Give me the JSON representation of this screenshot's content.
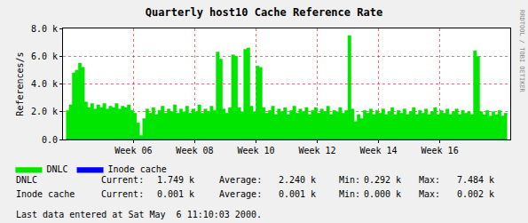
{
  "chart_data": {
    "type": "area",
    "title": "Quarterly host10 Cache Reference Rate",
    "y_label": "References/s",
    "x": [
      3.8,
      3.9,
      4.0,
      4.1,
      4.2,
      4.3,
      4.4,
      4.5,
      4.6,
      4.7,
      4.8,
      4.9,
      5.0,
      5.1,
      5.2,
      5.3,
      5.4,
      5.5,
      5.6,
      5.7,
      5.8,
      5.9,
      6.0,
      6.1,
      6.2,
      6.3,
      6.4,
      6.5,
      6.6,
      6.7,
      6.8,
      6.9,
      7.0,
      7.1,
      7.2,
      7.3,
      7.4,
      7.5,
      7.6,
      7.7,
      7.8,
      7.9,
      8.0,
      8.1,
      8.2,
      8.3,
      8.4,
      8.5,
      8.6,
      8.7,
      8.8,
      8.9,
      9.0,
      9.1,
      9.2,
      9.3,
      9.4,
      9.5,
      9.6,
      9.7,
      9.8,
      9.9,
      10.0,
      10.1,
      10.2,
      10.3,
      10.4,
      10.5,
      10.6,
      10.7,
      10.8,
      10.9,
      11.0,
      11.1,
      11.2,
      11.3,
      11.4,
      11.5,
      11.6,
      11.7,
      11.8,
      11.9,
      12.0,
      12.1,
      12.2,
      12.3,
      12.4,
      12.5,
      12.6,
      12.7,
      12.8,
      12.9,
      13.0,
      13.1,
      13.2,
      13.3,
      13.4,
      13.5,
      13.6,
      13.7,
      13.8,
      13.9,
      14.0,
      14.1,
      14.2,
      14.3,
      14.4,
      14.5,
      14.6,
      14.7,
      14.8,
      14.9,
      15.0,
      15.1,
      15.2,
      15.3,
      15.4,
      15.5,
      15.6,
      15.7,
      15.8,
      15.9,
      16.0,
      16.1,
      16.2,
      16.3,
      16.4,
      16.5,
      16.6,
      16.7,
      16.8,
      16.9,
      17.0,
      17.1,
      17.2,
      17.3,
      17.4,
      17.5,
      17.6,
      17.7,
      17.8,
      17.9,
      18.0,
      18.1,
      18.2
    ],
    "series": [
      {
        "name": "DNLC",
        "color": "#00e600",
        "values": [
          2100,
          2500,
          4800,
          5000,
          5500,
          5200,
          2700,
          2300,
          2600,
          2200,
          2500,
          2300,
          2600,
          2200,
          2400,
          2300,
          2600,
          2200,
          2400,
          2300,
          2500,
          2100,
          1900,
          1200,
          292,
          1500,
          2200,
          1900,
          2300,
          1800,
          2100,
          2400,
          1900,
          2200,
          2000,
          2500,
          1900,
          2200,
          2000,
          2400,
          1900,
          2200,
          2000,
          2500,
          1900,
          2200,
          2000,
          2400,
          2100,
          6300,
          5800,
          2200,
          1900,
          2300,
          6100,
          6000,
          2300,
          2000,
          6500,
          6600,
          2400,
          2000,
          5300,
          5200,
          2300,
          1900,
          2100,
          2400,
          1800,
          2200,
          2000,
          2300,
          1800,
          2100,
          2400,
          1900,
          2200,
          2000,
          2300,
          1800,
          2100,
          2300,
          1900,
          2200,
          2000,
          2400,
          1800,
          2100,
          2000,
          2300,
          1900,
          2100,
          7484,
          2200,
          1300,
          1800,
          1500,
          2100,
          1900,
          2200,
          1800,
          2100,
          1900,
          2200,
          1800,
          2000,
          2300,
          1800,
          2100,
          1900,
          2200,
          1800,
          2000,
          2300,
          1800,
          2100,
          1900,
          2200,
          1800,
          2000,
          2300,
          1800,
          2100,
          1900,
          2200,
          1800,
          2000,
          2200,
          1800,
          2100,
          1900,
          2000,
          1800,
          6400,
          6000,
          2000,
          1800,
          2100,
          1700,
          2000,
          1800,
          2100,
          1700,
          1900,
          1749
        ]
      },
      {
        "name": "Inode cache",
        "color": "#0000ff",
        "values": [
          1,
          1,
          1,
          1,
          1,
          1,
          1,
          1,
          1,
          1,
          1,
          1,
          1,
          1,
          1,
          1,
          1,
          1,
          1,
          1,
          1,
          1,
          1,
          1,
          0,
          1,
          1,
          1,
          1,
          1,
          1,
          1,
          1,
          1,
          1,
          1,
          1,
          1,
          1,
          1,
          1,
          1,
          1,
          1,
          1,
          1,
          1,
          1,
          1,
          1,
          1,
          1,
          1,
          1,
          1,
          1,
          1,
          1,
          1,
          1,
          1,
          1,
          1,
          1,
          1,
          1,
          1,
          1,
          1,
          1,
          1,
          1,
          1,
          1,
          1,
          1,
          1,
          1,
          1,
          1,
          1,
          1,
          1,
          1,
          1,
          1,
          1,
          1,
          1,
          1,
          1,
          1,
          2,
          1,
          1,
          1,
          1,
          1,
          1,
          1,
          1,
          1,
          1,
          1,
          1,
          1,
          1,
          1,
          1,
          1,
          1,
          1,
          1,
          1,
          1,
          1,
          1,
          1,
          1,
          1,
          1,
          1,
          1,
          1,
          1,
          1,
          1,
          1,
          1,
          1,
          1,
          1,
          1,
          1,
          1,
          1,
          1,
          1,
          1,
          1,
          1,
          1,
          1,
          1,
          1
        ]
      }
    ],
    "xlim": [
      3.7,
      18.3
    ],
    "xticks": [
      {
        "value": 6,
        "label": "Week 06"
      },
      {
        "value": 8,
        "label": "Week 08"
      },
      {
        "value": 10,
        "label": "Week 10"
      },
      {
        "value": 12,
        "label": "Week 12"
      },
      {
        "value": 14,
        "label": "Week 14"
      },
      {
        "value": 16,
        "label": "Week 16"
      }
    ],
    "ylim": [
      0,
      8000
    ],
    "yticks": [
      {
        "value": 0,
        "label": "0.0"
      },
      {
        "value": 2000,
        "label": "2.0 k"
      },
      {
        "value": 4000,
        "label": "4.0 k"
      },
      {
        "value": 6000,
        "label": "6.0 k"
      },
      {
        "value": 8000,
        "label": "8.0 k"
      }
    ],
    "grid": true,
    "legend": "bottom left",
    "stats": [
      [
        "DNLC",
        "Current:",
        "1.749 k",
        "Average:",
        "2.240 k",
        "Min:",
        "0.292 k",
        "Max:",
        "7.484 k"
      ],
      [
        "Inode cache",
        "Current:",
        "0.001 k",
        "Average:",
        "0.001 k",
        "Min:",
        "0.000 k",
        "Max:",
        "0.002 k"
      ]
    ],
    "annotations": [
      "RRDTOOL / TOBI OETIKER",
      "Last data entered at Sat May  6 11:10:03 2000."
    ]
  }
}
